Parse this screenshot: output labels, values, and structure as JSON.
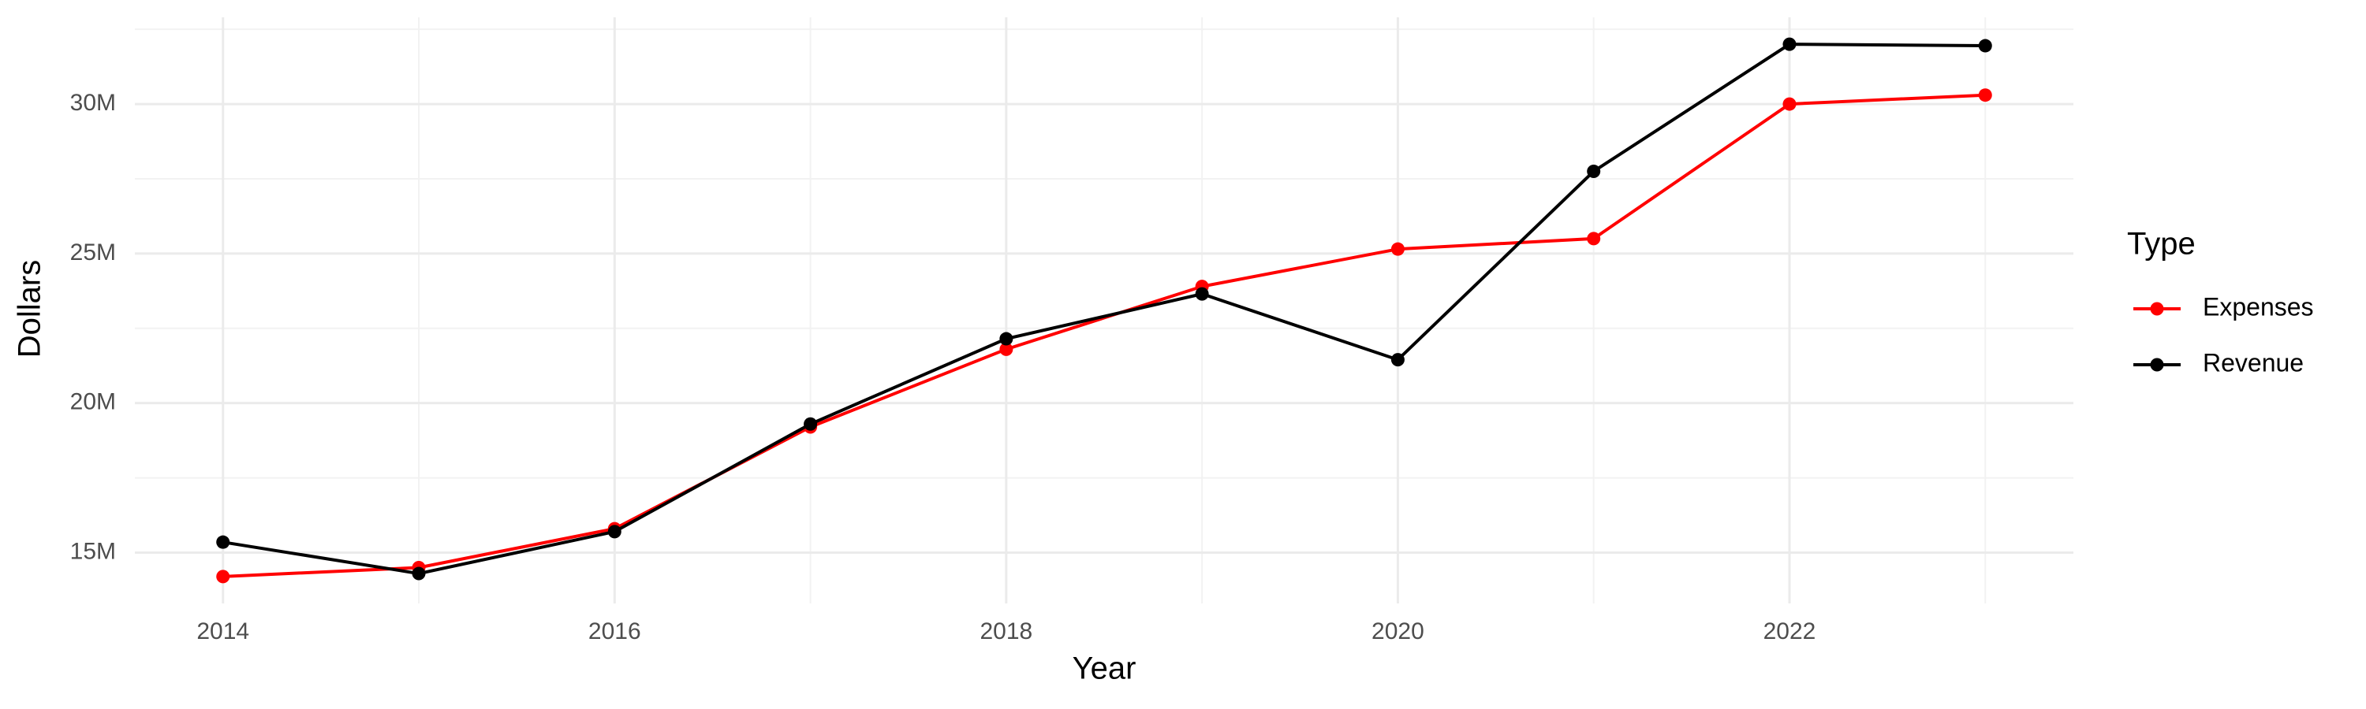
{
  "chart_data": {
    "type": "line",
    "x_label": "Year",
    "y_label": "Dollars",
    "legend_title": "Type",
    "legend_position": "right",
    "x": [
      2014,
      2015,
      2016,
      2017,
      2018,
      2019,
      2020,
      2021,
      2022,
      2023
    ],
    "series": [
      {
        "name": "Expenses",
        "color": "#ff0000",
        "values": [
          14200000,
          14500000,
          15800000,
          19200000,
          21800000,
          23900000,
          25150000,
          25500000,
          30000000,
          30300000
        ]
      },
      {
        "name": "Revenue",
        "color": "#000000",
        "values": [
          15350000,
          14300000,
          15700000,
          19300000,
          22150000,
          23650000,
          21450000,
          27750000,
          32000000,
          31950000
        ]
      }
    ],
    "xlim": [
      2013.55,
      2023.45
    ],
    "xticks": [
      2014,
      2016,
      2018,
      2020,
      2022
    ],
    "ylim": [
      13300000,
      32900000
    ],
    "yticks": [
      {
        "value": 15000000,
        "label": "15M"
      },
      {
        "value": 20000000,
        "label": "20M"
      },
      {
        "value": 25000000,
        "label": "25M"
      },
      {
        "value": 30000000,
        "label": "30M"
      }
    ],
    "grid": true,
    "markers": true
  }
}
